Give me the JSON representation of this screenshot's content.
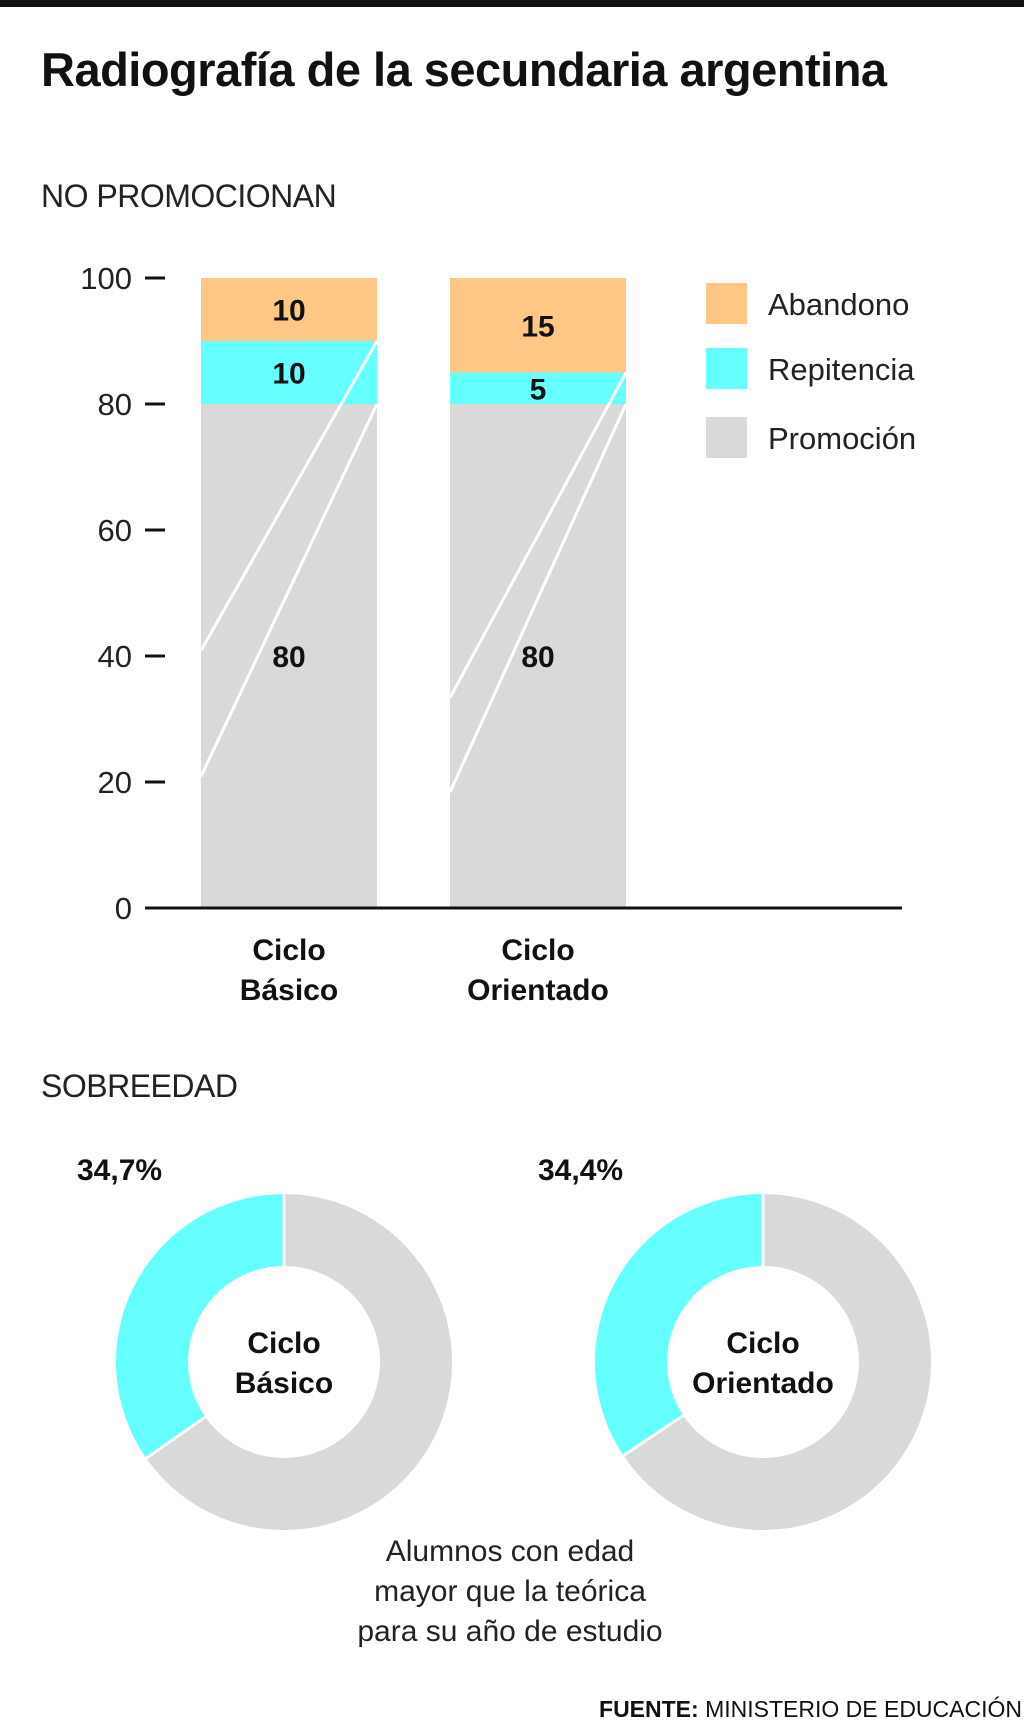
{
  "title": "Radiografía de la secundaria argentina",
  "colors": {
    "abandono": "#ffc785",
    "repitencia": "#66ffff",
    "promocion": "#d9d9d9",
    "axis": "#111111"
  },
  "chart_data": [
    {
      "type": "bar",
      "stacked": true,
      "section_label": "NO PROMOCIONAN",
      "categories": [
        [
          "Ciclo",
          "Básico"
        ],
        [
          "Ciclo",
          "Orientado"
        ]
      ],
      "series": [
        {
          "name": "Promoción",
          "values": [
            80,
            80
          ],
          "color": "#d9d9d9"
        },
        {
          "name": "Repitencia",
          "values": [
            10,
            5
          ],
          "color": "#66ffff"
        },
        {
          "name": "Abandono",
          "values": [
            10,
            15
          ],
          "color": "#ffc785"
        }
      ],
      "yticks": [
        "0",
        "20",
        "40",
        "60",
        "80",
        "100"
      ],
      "ylim": [
        0,
        100
      ],
      "legend": [
        "Abandono",
        "Repitencia",
        "Promoción"
      ],
      "legend_position": "top-right"
    },
    {
      "type": "pie",
      "donut": true,
      "section_label": "SOBREEDAD",
      "charts": [
        {
          "center_label": [
            "Ciclo",
            "Básico"
          ],
          "value": 34.7,
          "value_label": "34,7%"
        },
        {
          "center_label": [
            "Ciclo",
            "Orientado"
          ],
          "value": 34.4,
          "value_label": "34,4%"
        }
      ],
      "caption": [
        "Alumnos con edad",
        "mayor que la teórica",
        "para su año de estudio"
      ]
    }
  ],
  "source": {
    "label": "FUENTE:",
    "text": "MINISTERIO DE EDUCACIÓN"
  }
}
